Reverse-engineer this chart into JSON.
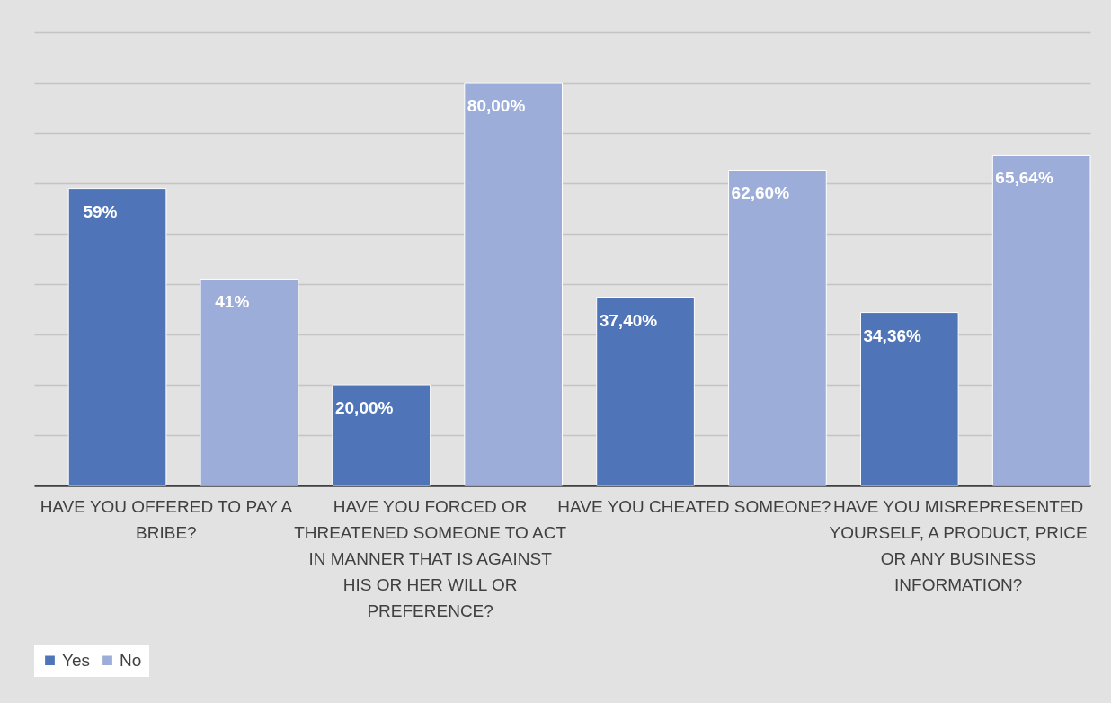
{
  "chart_data": {
    "type": "bar",
    "categories": [
      "HAVE YOU OFFERED TO PAY A BRIBE?",
      "HAVE YOU FORCED OR THREATENED SOMEONE TO ACT IN MANNER THAT IS AGAINST HIS OR HER WILL OR PREFERENCE?",
      "HAVE YOU CHEATED SOMEONE?",
      "HAVE YOU MISREPRESENTED YOURSELF, A PRODUCT, PRICE OR ANY BUSINESS INFORMATION?"
    ],
    "series": [
      {
        "name": "Yes",
        "color": "#4f74b8",
        "values": [
          59,
          20,
          37.4,
          34.36
        ],
        "value_labels": [
          "59%",
          "20,00%",
          "37,40%",
          "34,36%"
        ]
      },
      {
        "name": "No",
        "color": "#9dadd9",
        "values": [
          41,
          80,
          62.6,
          65.64
        ],
        "value_labels": [
          "41%",
          "80,00%",
          "62,60%",
          "65,64%"
        ]
      }
    ],
    "ylim": [
      0,
      90
    ],
    "yticks": [
      {
        "value": 0,
        "label": null
      },
      {
        "value": 10,
        "label": null
      },
      {
        "value": 20,
        "label": null
      },
      {
        "value": 30,
        "label": null
      },
      {
        "value": 40,
        "label": null
      },
      {
        "value": 50,
        "label": null
      },
      {
        "value": 60,
        "label": null
      },
      {
        "value": 70,
        "label": null
      },
      {
        "value": 80,
        "label": null
      },
      {
        "value": 90,
        "label": null
      }
    ],
    "grid": "y",
    "tick_labels": "x",
    "legend": "bottom"
  }
}
